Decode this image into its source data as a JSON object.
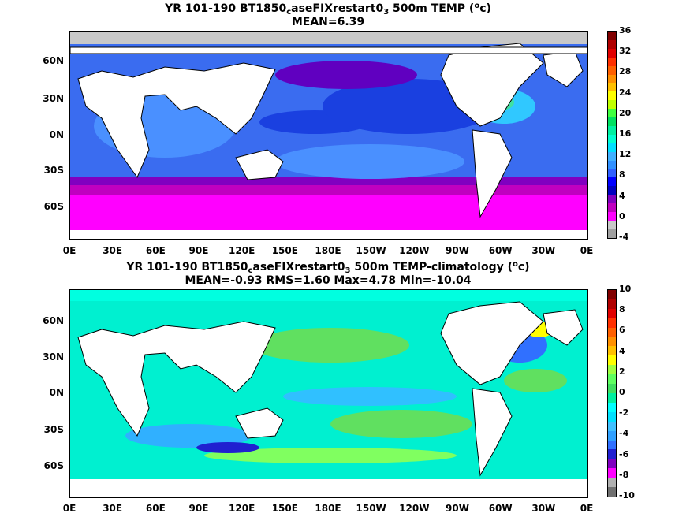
{
  "panel1": {
    "title_pre": "YR 101-190 BT1850",
    "title_sub": "c",
    "title_mid": "aseFIXrestart0",
    "title_sub2": "3",
    "title_post": " 500m TEMP (",
    "title_sup": "o",
    "title_unit": "c)",
    "stats": "MEAN=6.39",
    "colorbar_labels": [
      "36",
      "32",
      "28",
      "24",
      "20",
      "16",
      "12",
      "8",
      "4",
      "0",
      "-4"
    ],
    "colorbar_colors": [
      "#a0a0a0",
      "#c8c8c8",
      "#ff00ff",
      "#c000c0",
      "#8000c0",
      "#0000c0",
      "#0000ff",
      "#3060ff",
      "#3090ff",
      "#40b0ff",
      "#00e0ff",
      "#00ffd0",
      "#00f0a0",
      "#00e060",
      "#40ff40",
      "#c0ff00",
      "#ffff00",
      "#ffc000",
      "#ff9000",
      "#ff6000",
      "#ff3000",
      "#e00000",
      "#b00000",
      "#800000"
    ]
  },
  "panel2": {
    "title_pre": "YR 101-190 BT1850",
    "title_sub": "c",
    "title_mid": "aseFIXrestart0",
    "title_sub2": "3",
    "title_post": " 500m TEMP-climatology (",
    "title_sup": "o",
    "title_unit": "c)",
    "stats": "MEAN=-0.93   RMS=1.60   Max=4.78   Min=-10.04",
    "colorbar_labels": [
      "10",
      "8",
      "6",
      "4",
      "2",
      "0",
      "-2",
      "-4",
      "-6",
      "-8",
      "-10"
    ],
    "colorbar_colors": [
      "#707070",
      "#b0b0b0",
      "#ff00ff",
      "#8000c0",
      "#2020d0",
      "#3070ff",
      "#30a0ff",
      "#40c0ff",
      "#00e0ff",
      "#00ffff",
      "#00f0a0",
      "#40e060",
      "#60ff60",
      "#a0ff40",
      "#ffff00",
      "#ffc000",
      "#ff9000",
      "#ff6000",
      "#ff3000",
      "#e00000",
      "#b00000",
      "#800000"
    ]
  },
  "axes": {
    "lat_labels": [
      "60N",
      "30N",
      "0N",
      "30S",
      "60S"
    ],
    "lon_labels": [
      "0E",
      "30E",
      "60E",
      "90E",
      "120E",
      "150E",
      "180E",
      "150W",
      "120W",
      "90W",
      "60W",
      "30W",
      "0E"
    ]
  }
}
